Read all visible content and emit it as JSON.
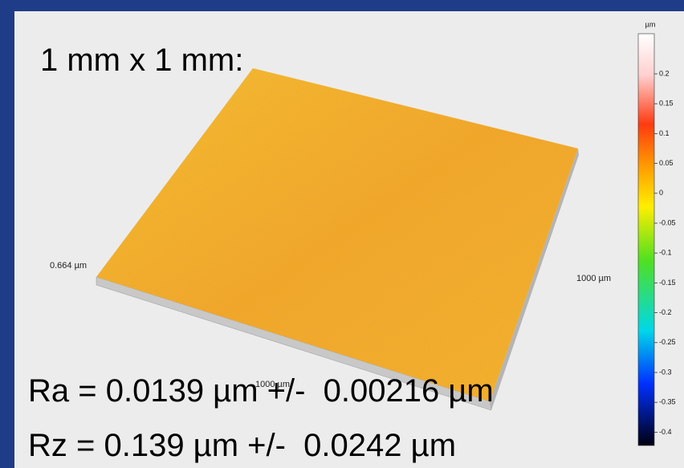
{
  "title": "1 mm x 1 mm:",
  "plot": {
    "height_label": "0.664 µm",
    "x_label": "1000 µm",
    "y_label": "1000 µm"
  },
  "colorbar": {
    "unit": "µm",
    "ticks": [
      "0.2",
      "0.15",
      "0.1",
      "0.05",
      "0",
      "-0.05",
      "-0.1",
      "-0.15",
      "-0.2",
      "-0.25",
      "-0.3",
      "-0.35",
      "-0.4"
    ]
  },
  "stats": [
    "Ra = 0.0139 µm +/-  0.00216 µm",
    "Rz = 0.139 µm +/-  0.0242 µm"
  ]
}
